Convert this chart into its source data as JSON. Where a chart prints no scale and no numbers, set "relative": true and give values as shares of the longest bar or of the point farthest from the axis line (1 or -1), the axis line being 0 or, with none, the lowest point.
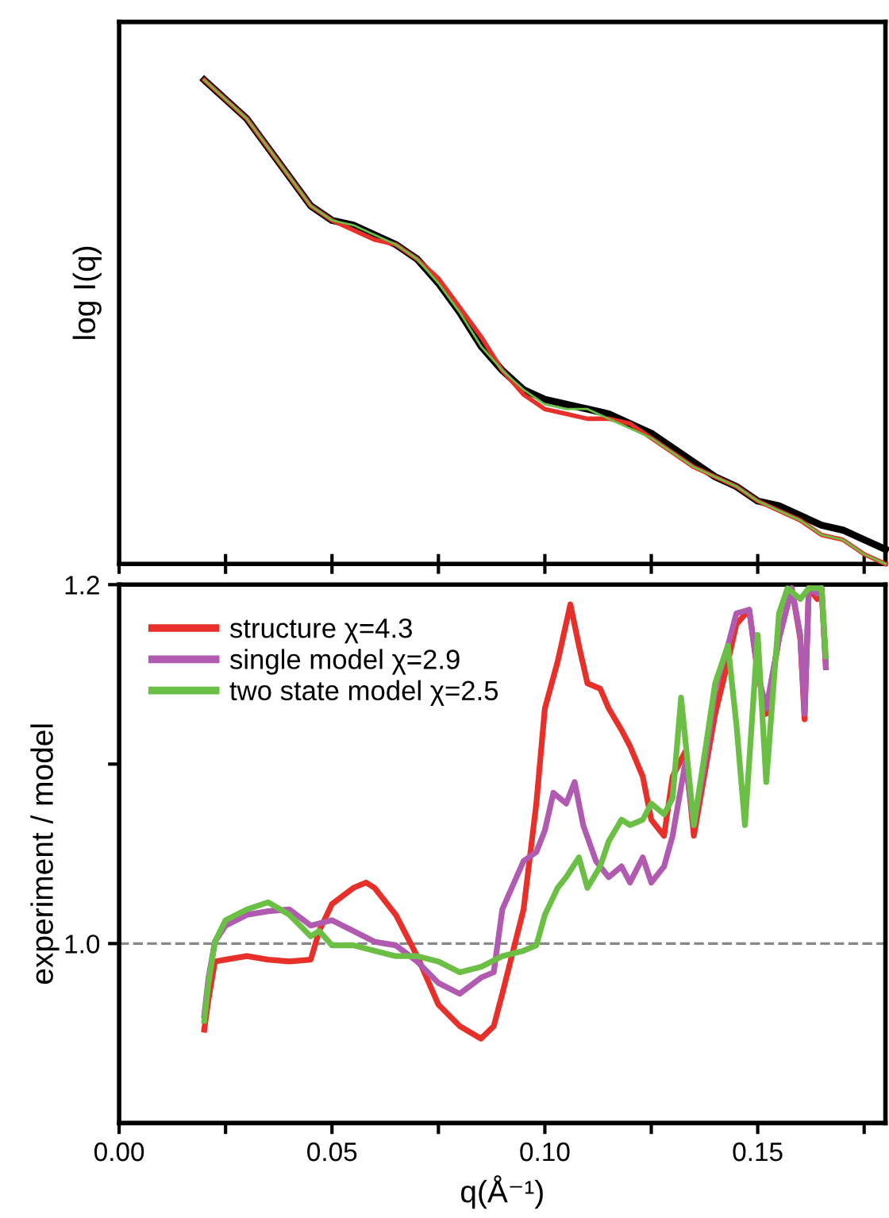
{
  "chart_data": [
    {
      "type": "line",
      "ylabel": "log I(q)",
      "relative": true,
      "tick_labels": false,
      "xlim": [
        0,
        0.18
      ],
      "xticks": [
        0,
        0.025,
        0.05,
        0.075,
        0.1,
        0.125,
        0.15,
        0.175
      ],
      "grid": false,
      "legend": false,
      "marker": "none",
      "line_style": "solid",
      "x": [
        0.02,
        0.03,
        0.04,
        0.045,
        0.05,
        0.055,
        0.06,
        0.065,
        0.07,
        0.075,
        0.08,
        0.085,
        0.09,
        0.095,
        0.1,
        0.105,
        0.11,
        0.115,
        0.12,
        0.125,
        0.13,
        0.135,
        0.14,
        0.145,
        0.15,
        0.155,
        0.16,
        0.165,
        0.17,
        0.175,
        0.18
      ],
      "series": [
        {
          "color": "#000000",
          "values": [
            1.0,
            0.92,
            0.8,
            0.74,
            0.71,
            0.7,
            0.68,
            0.66,
            0.63,
            0.58,
            0.52,
            0.45,
            0.4,
            0.36,
            0.34,
            0.33,
            0.32,
            0.31,
            0.29,
            0.27,
            0.24,
            0.21,
            0.18,
            0.16,
            0.13,
            0.12,
            0.1,
            0.08,
            0.07,
            0.05,
            0.03
          ]
        },
        {
          "color": "#e8302a",
          "values": [
            1.0,
            0.92,
            0.8,
            0.74,
            0.71,
            0.69,
            0.67,
            0.66,
            0.63,
            0.59,
            0.53,
            0.47,
            0.4,
            0.35,
            0.32,
            0.31,
            0.3,
            0.3,
            0.29,
            0.26,
            0.23,
            0.2,
            0.18,
            0.16,
            0.13,
            0.11,
            0.09,
            0.06,
            0.05,
            0.02,
            0.0
          ]
        },
        {
          "color": "#6cbf45",
          "values": [
            1.0,
            0.92,
            0.8,
            0.74,
            0.71,
            0.7,
            0.68,
            0.66,
            0.63,
            0.58,
            0.52,
            0.45,
            0.4,
            0.36,
            0.33,
            0.32,
            0.32,
            0.3,
            0.28,
            0.26,
            0.23,
            0.2,
            0.18,
            0.16,
            0.13,
            0.11,
            0.09,
            0.06,
            0.05,
            0.02,
            0.0
          ]
        }
      ]
    },
    {
      "type": "line",
      "xlabel": "q(Å⁻¹)",
      "ylabel": "experiment / model",
      "xlim": [
        0,
        0.18
      ],
      "xticks": [
        {
          "value": 0,
          "label": "0.00"
        },
        {
          "value": 0.025,
          "label": null
        },
        {
          "value": 0.05,
          "label": "0.05"
        },
        {
          "value": 0.075,
          "label": null
        },
        {
          "value": 0.1,
          "label": "0.10"
        },
        {
          "value": 0.125,
          "label": null
        },
        {
          "value": 0.15,
          "label": "0.15"
        },
        {
          "value": 0.175,
          "label": null
        }
      ],
      "ylim": [
        0.9,
        1.2
      ],
      "yticks": [
        {
          "value": 1.0,
          "label": "1.0"
        },
        {
          "value": 1.1,
          "label": null
        },
        {
          "value": 1.2,
          "label": "1.2"
        }
      ],
      "grid": false,
      "legend": "top left",
      "marker": "none",
      "line_style": "solid",
      "ref_lines": [
        {
          "axis": "y",
          "value": 1.0,
          "color": "#888888",
          "line_style": "dashed"
        }
      ],
      "series": [
        {
          "name": "structure χ=4.3",
          "color": "#e8302a",
          "x": [
            0.02,
            0.021,
            0.0225,
            0.025,
            0.03,
            0.035,
            0.04,
            0.045,
            0.047,
            0.05,
            0.055,
            0.058,
            0.06,
            0.065,
            0.07,
            0.075,
            0.08,
            0.085,
            0.088,
            0.09,
            0.095,
            0.098,
            0.1,
            0.103,
            0.106,
            0.108,
            0.11,
            0.113,
            0.115,
            0.118,
            0.12,
            0.123,
            0.125,
            0.128,
            0.13,
            0.133,
            0.135,
            0.138,
            0.14,
            0.143,
            0.145,
            0.148,
            0.15,
            0.152,
            0.155,
            0.158,
            0.16,
            0.161,
            0.162,
            0.164,
            0.165,
            0.166
          ],
          "values": [
            0.952,
            0.969,
            0.99,
            0.991,
            0.993,
            0.991,
            0.99,
            0.991,
            1.007,
            1.022,
            1.031,
            1.034,
            1.031,
            1.016,
            0.993,
            0.966,
            0.954,
            0.947,
            0.954,
            0.972,
            1.019,
            1.078,
            1.131,
            1.157,
            1.189,
            1.166,
            1.145,
            1.142,
            1.131,
            1.119,
            1.11,
            1.093,
            1.069,
            1.06,
            1.093,
            1.107,
            1.06,
            1.101,
            1.128,
            1.157,
            1.178,
            1.186,
            1.151,
            1.128,
            1.17,
            1.198,
            1.17,
            1.125,
            1.198,
            1.192,
            1.198,
            1.154
          ]
        },
        {
          "name": "single model χ=2.9",
          "color": "#b05ab0",
          "x": [
            0.02,
            0.021,
            0.0225,
            0.025,
            0.03,
            0.035,
            0.04,
            0.045,
            0.05,
            0.055,
            0.06,
            0.065,
            0.07,
            0.075,
            0.08,
            0.085,
            0.088,
            0.09,
            0.095,
            0.098,
            0.1,
            0.102,
            0.105,
            0.107,
            0.109,
            0.112,
            0.115,
            0.118,
            0.12,
            0.123,
            0.125,
            0.128,
            0.13,
            0.133,
            0.135,
            0.138,
            0.14,
            0.143,
            0.145,
            0.148,
            0.15,
            0.152,
            0.155,
            0.158,
            0.16,
            0.161,
            0.162,
            0.164,
            0.165,
            0.166
          ],
          "values": [
            0.96,
            0.981,
            1.001,
            1.01,
            1.016,
            1.018,
            1.019,
            1.01,
            1.013,
            1.007,
            1.001,
            0.999,
            0.99,
            0.978,
            0.972,
            0.981,
            0.984,
            1.019,
            1.046,
            1.051,
            1.063,
            1.084,
            1.078,
            1.09,
            1.066,
            1.046,
            1.037,
            1.043,
            1.034,
            1.048,
            1.034,
            1.043,
            1.06,
            1.101,
            1.066,
            1.107,
            1.142,
            1.166,
            1.184,
            1.186,
            1.151,
            1.131,
            1.17,
            1.198,
            1.172,
            1.128,
            1.198,
            1.195,
            1.198,
            1.154
          ]
        },
        {
          "name": "two state model χ=2.5",
          "color": "#6cbf45",
          "x": [
            0.02,
            0.021,
            0.0225,
            0.025,
            0.03,
            0.035,
            0.04,
            0.045,
            0.047,
            0.05,
            0.055,
            0.06,
            0.065,
            0.07,
            0.075,
            0.08,
            0.085,
            0.09,
            0.095,
            0.098,
            0.1,
            0.103,
            0.105,
            0.108,
            0.11,
            0.113,
            0.115,
            0.118,
            0.12,
            0.123,
            0.125,
            0.128,
            0.13,
            0.132,
            0.135,
            0.138,
            0.14,
            0.143,
            0.145,
            0.147,
            0.15,
            0.152,
            0.155,
            0.157,
            0.16,
            0.162,
            0.164,
            0.165,
            0.166
          ],
          "values": [
            0.957,
            0.978,
            1.001,
            1.013,
            1.019,
            1.023,
            1.016,
            1.004,
            1.007,
            0.999,
            0.999,
            0.996,
            0.993,
            0.993,
            0.99,
            0.984,
            0.987,
            0.993,
            0.996,
            0.999,
            1.016,
            1.031,
            1.037,
            1.048,
            1.031,
            1.043,
            1.057,
            1.069,
            1.066,
            1.069,
            1.078,
            1.072,
            1.081,
            1.137,
            1.066,
            1.113,
            1.145,
            1.166,
            1.122,
            1.066,
            1.172,
            1.09,
            1.184,
            1.198,
            1.192,
            1.198,
            1.198,
            1.198,
            1.16
          ]
        }
      ]
    }
  ]
}
